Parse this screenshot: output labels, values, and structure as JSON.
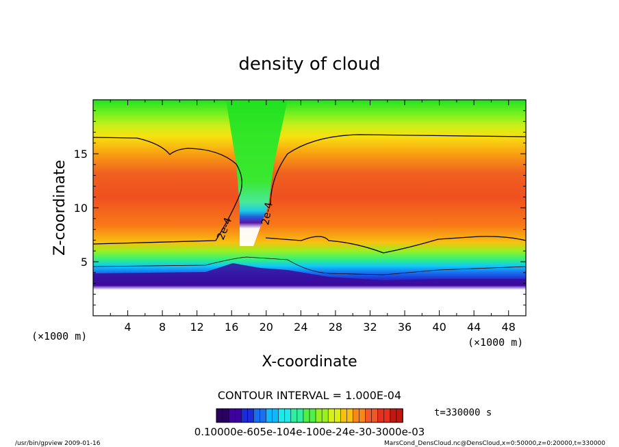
{
  "chart_data": {
    "type": "heatmap",
    "title": "density of cloud",
    "xlabel": "X-coordinate",
    "ylabel": "Z-coordinate",
    "x_unit": "(×1000 m)",
    "y_unit": "(×1000 m)",
    "xlim": [
      0,
      50
    ],
    "ylim": [
      0,
      20
    ],
    "x_ticks": [
      "4",
      "8",
      "12",
      "16",
      "20",
      "24",
      "28",
      "32",
      "36",
      "40",
      "44",
      "48"
    ],
    "y_ticks": [
      "5",
      "10",
      "15"
    ],
    "x_tick_values": [
      4,
      8,
      12,
      16,
      20,
      24,
      28,
      32,
      36,
      40,
      44,
      48
    ],
    "y_tick_values": [
      5,
      10,
      15
    ],
    "contour_interval_text": "CONTOUR INTERVAL = 1.000E-04",
    "contour_labels": [
      {
        "text": "2e-4",
        "x": 15.3,
        "z": 8.2
      },
      {
        "text": "2e-4",
        "x": 20.0,
        "z": 9.8
      }
    ],
    "time_label": "t=330000 s",
    "colorbar": {
      "labels_text": "0.10000e-6 ... 0.30000e-03 (overlapping labels)",
      "label_display": "0.10000e-605e-104e-100e-24e-30-3000e-03",
      "range": [
        "0.10000e-6",
        "0.30000e-03"
      ],
      "colors": [
        "#2a0060",
        "#3f00a0",
        "#1c2ad8",
        "#1870f0",
        "#10b8ff",
        "#20e8e8",
        "#30f0a0",
        "#50f048",
        "#98f020",
        "#d8f018",
        "#f8c010",
        "#f88818",
        "#f05828",
        "#e83020",
        "#c01810"
      ]
    },
    "footer_left": "/usr/bin/gpview   2009-01-16",
    "footer_right": "MarsCond_DensCloud.nc@DensCloud,x=0:50000,z=0:20000,t=330000",
    "colors": {
      "low": "#3b0a9a",
      "mid": "#40f040",
      "high": "#f04a1c",
      "contour": "#000000"
    }
  },
  "footer": {
    "left": "/usr/bin/gpview   2009-01-16",
    "right": "MarsCond_DensCloud.nc@DensCloud,x=0:50000,z=0:20000,t=330000"
  }
}
